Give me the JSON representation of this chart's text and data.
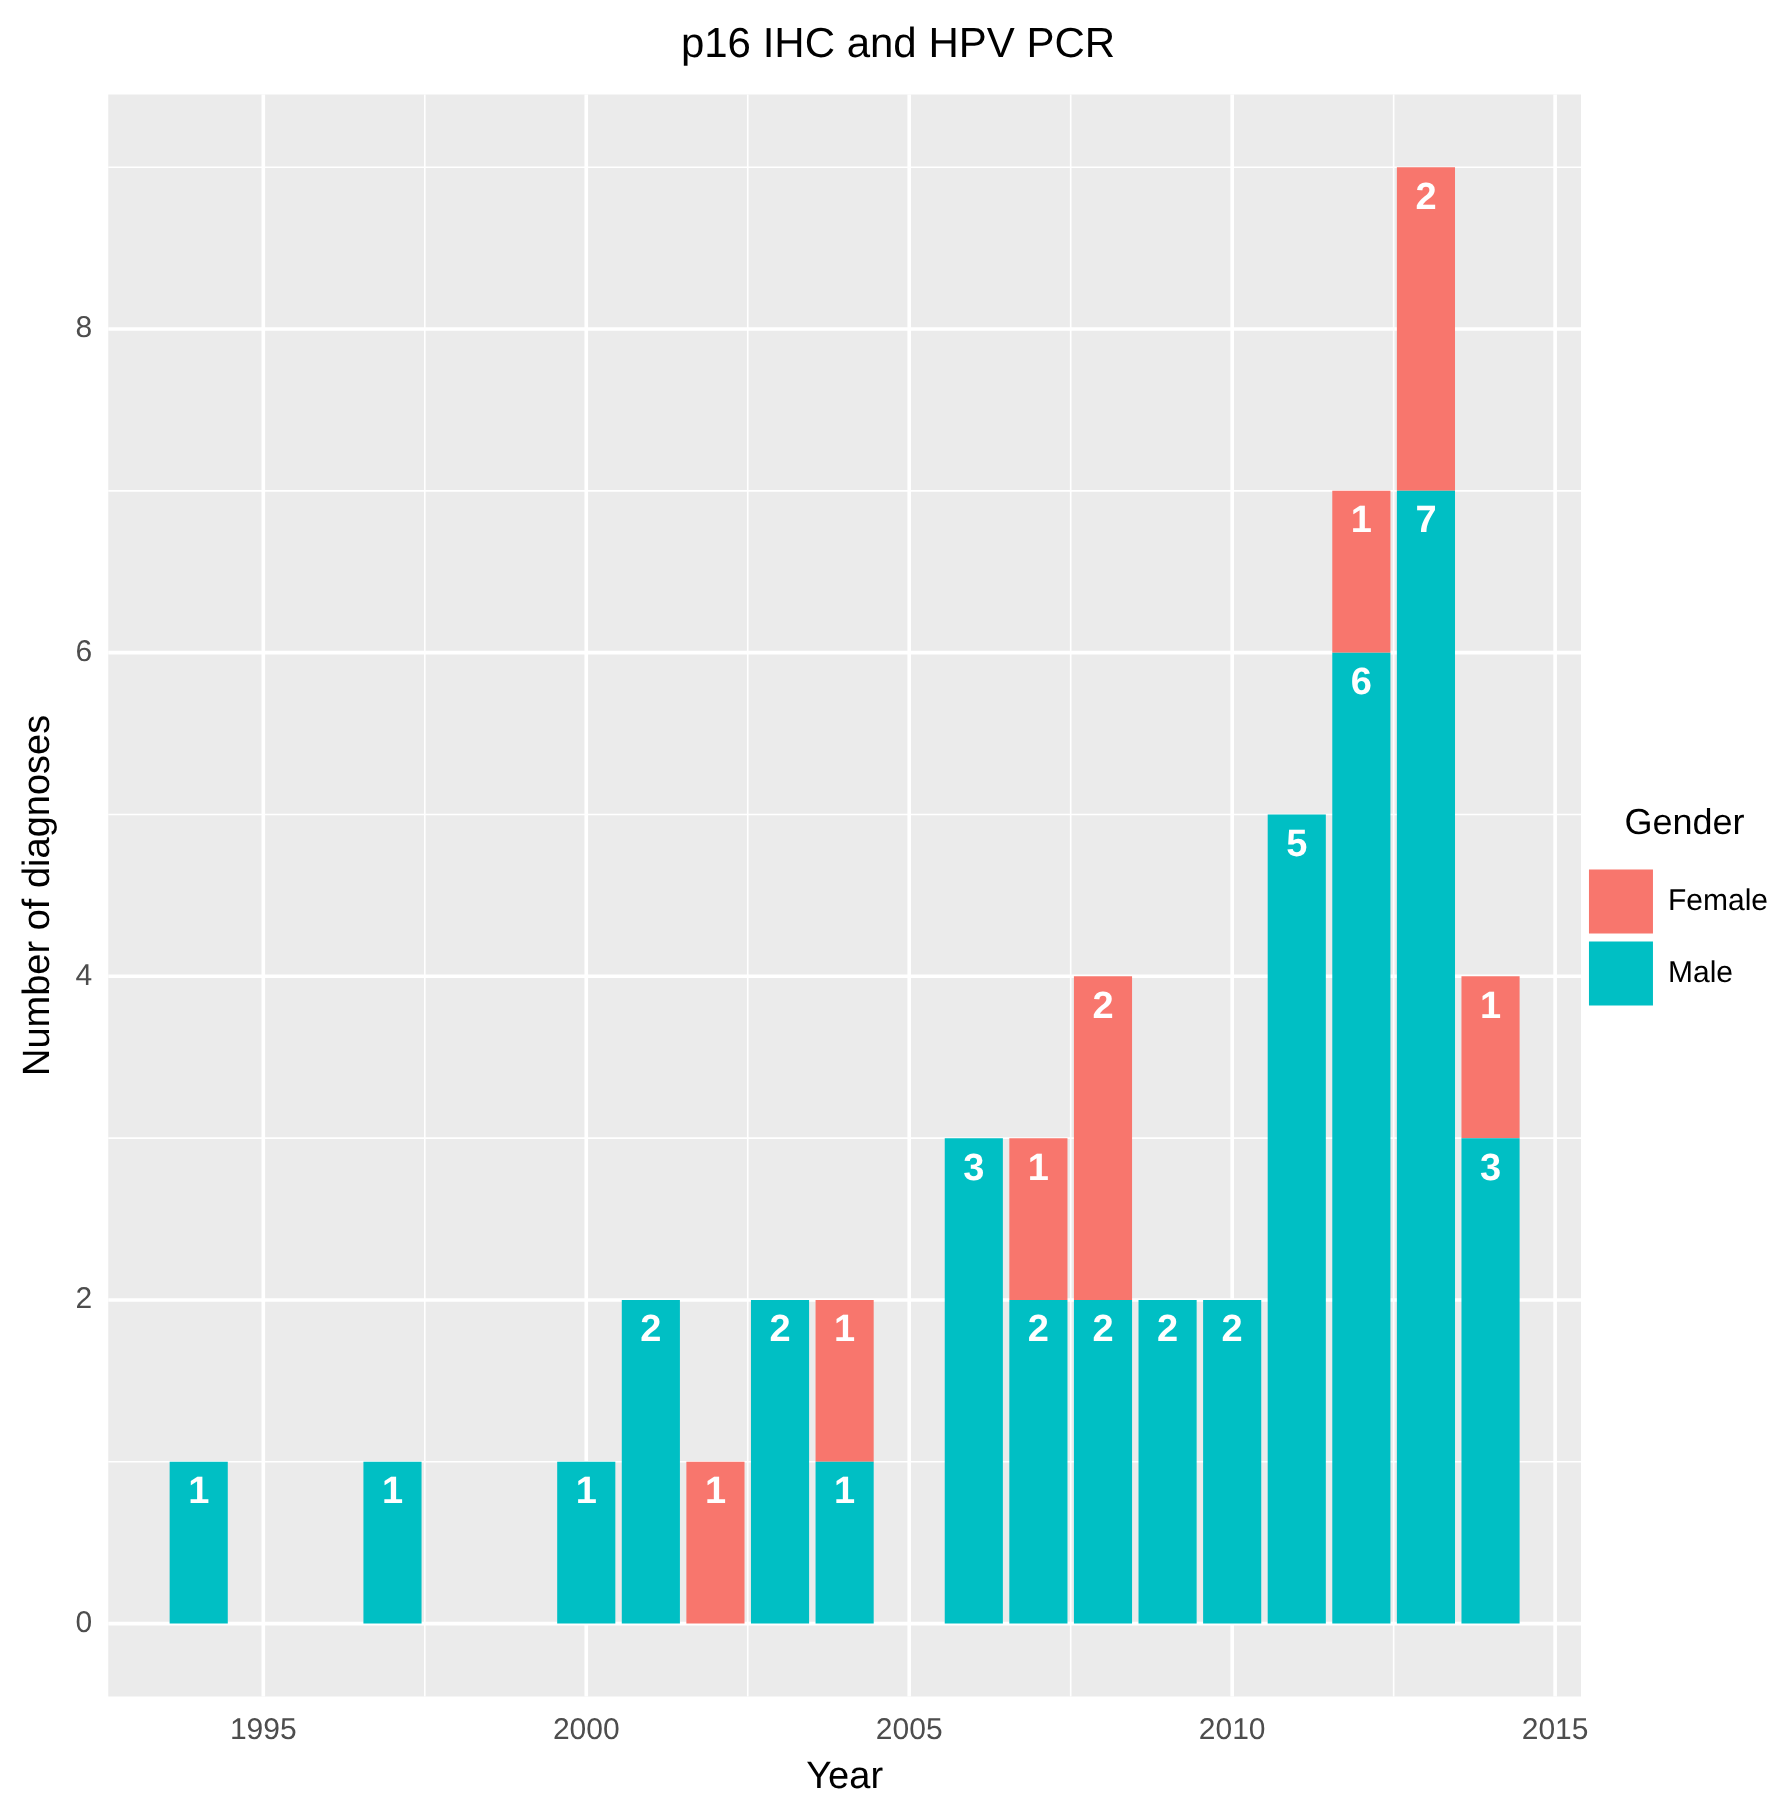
{
  "chart_data": {
    "type": "bar",
    "title": "p16 IHC and HPV PCR",
    "xlabel": "Year",
    "ylabel": "Number of diagnoses",
    "legend_title": "Gender",
    "stacked": true,
    "data_labels": true,
    "grid": true,
    "legend": "right",
    "x": [
      1994,
      1997,
      2000,
      2001,
      2002,
      2003,
      2004,
      2006,
      2007,
      2008,
      2009,
      2010,
      2011,
      2012,
      2013,
      2014
    ],
    "series": [
      {
        "name": "Male",
        "color": "#00bfc4",
        "values": [
          1,
          1,
          1,
          2,
          null,
          2,
          1,
          3,
          2,
          2,
          2,
          2,
          5,
          6,
          7,
          3
        ]
      },
      {
        "name": "Female",
        "color": "#f8766d",
        "values": [
          null,
          null,
          null,
          null,
          1,
          null,
          1,
          null,
          1,
          2,
          null,
          null,
          null,
          1,
          2,
          1
        ]
      }
    ],
    "xlim": [
      1992.6,
      2015.4
    ],
    "xticks": [
      1995,
      2000,
      2005,
      2010,
      2015
    ],
    "ylim": [
      -0.45,
      9.45
    ],
    "yticks": [
      0,
      2,
      4,
      6,
      8
    ]
  }
}
